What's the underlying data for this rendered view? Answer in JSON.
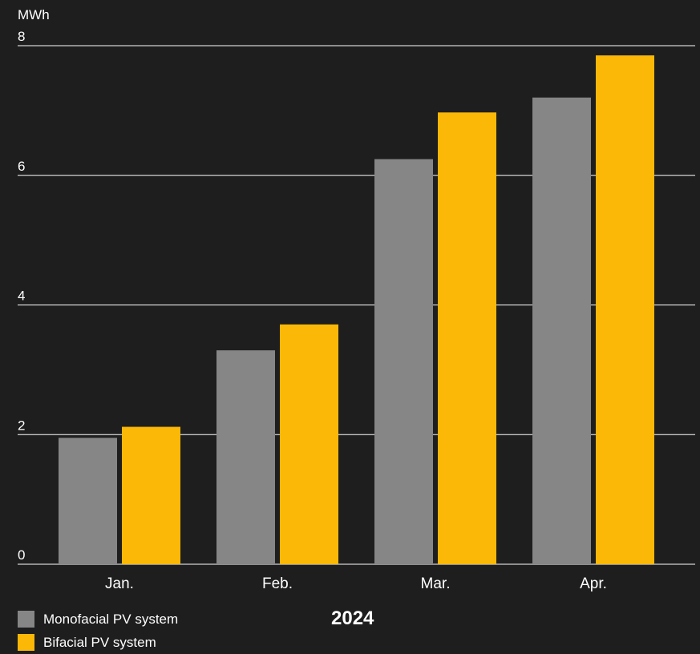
{
  "chart_data": {
    "type": "bar",
    "unit_label": "MWh",
    "categories": [
      "Jan.",
      "Feb.",
      "Mar.",
      "Apr."
    ],
    "series": [
      {
        "name": "Monofacial PV system",
        "color": "#868686",
        "values": [
          1.95,
          3.3,
          6.25,
          7.2
        ]
      },
      {
        "name": "Bifacial PV system",
        "color": "#fbb806",
        "values": [
          2.12,
          3.7,
          6.97,
          7.85
        ]
      }
    ],
    "ylim": [
      0,
      8
    ],
    "yticks": [
      0,
      2,
      4,
      6,
      8
    ],
    "grid": true,
    "legend_position": "bottom-left",
    "year": "2024"
  }
}
